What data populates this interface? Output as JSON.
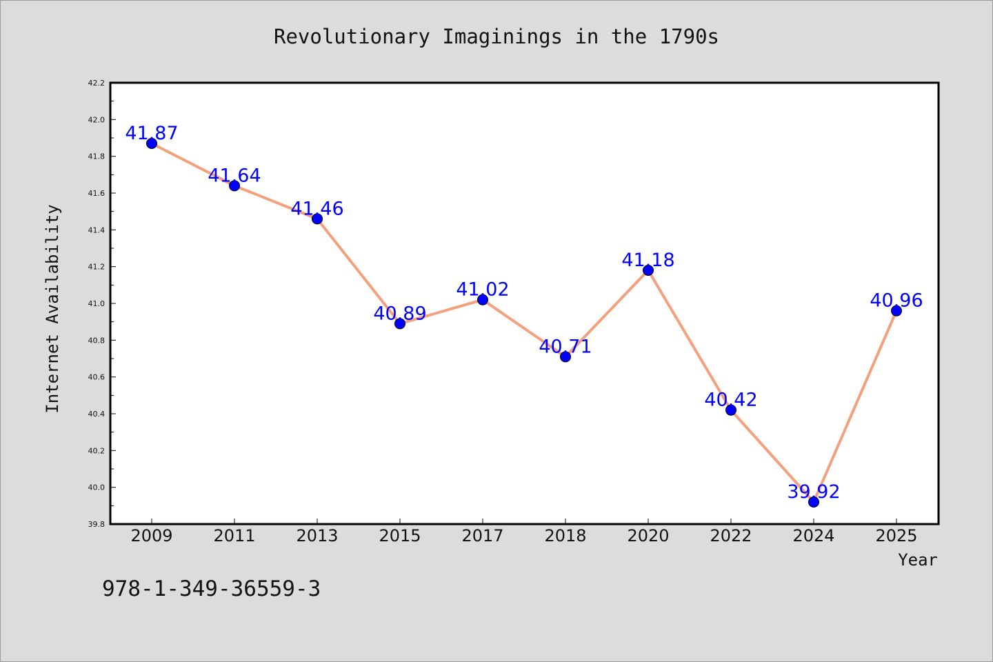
{
  "chart_data": {
    "type": "line",
    "title": "Revolutionary Imaginings in the 1790s",
    "xlabel": "Year",
    "ylabel": "Internet Availability",
    "categories": [
      "2009",
      "2011",
      "2013",
      "2015",
      "2017",
      "2018",
      "2020",
      "2022",
      "2024",
      "2025"
    ],
    "series": [
      {
        "values": [
          41.87,
          41.64,
          41.46,
          40.89,
          41.02,
          40.71,
          41.18,
          40.42,
          39.92,
          40.96
        ],
        "line_color": "#f4a07e",
        "marker_color": "#0000ff"
      }
    ],
    "data_labels": [
      "41.87",
      "41.64",
      "41.46",
      "40.89",
      "41.02",
      "40.71",
      "41.18",
      "40.42",
      "39.92",
      "40.96"
    ],
    "ylim": [
      39.8,
      42.2
    ],
    "yticks": [
      "39.8",
      "40.0",
      "40.2",
      "40.4",
      "40.6",
      "40.8",
      "41.0",
      "41.2",
      "41.4",
      "41.6",
      "41.8",
      "42.0",
      "42.2"
    ],
    "grid": false,
    "label_color": "#0000ff"
  },
  "footer": {
    "isbn": "978-1-349-36559-3"
  }
}
